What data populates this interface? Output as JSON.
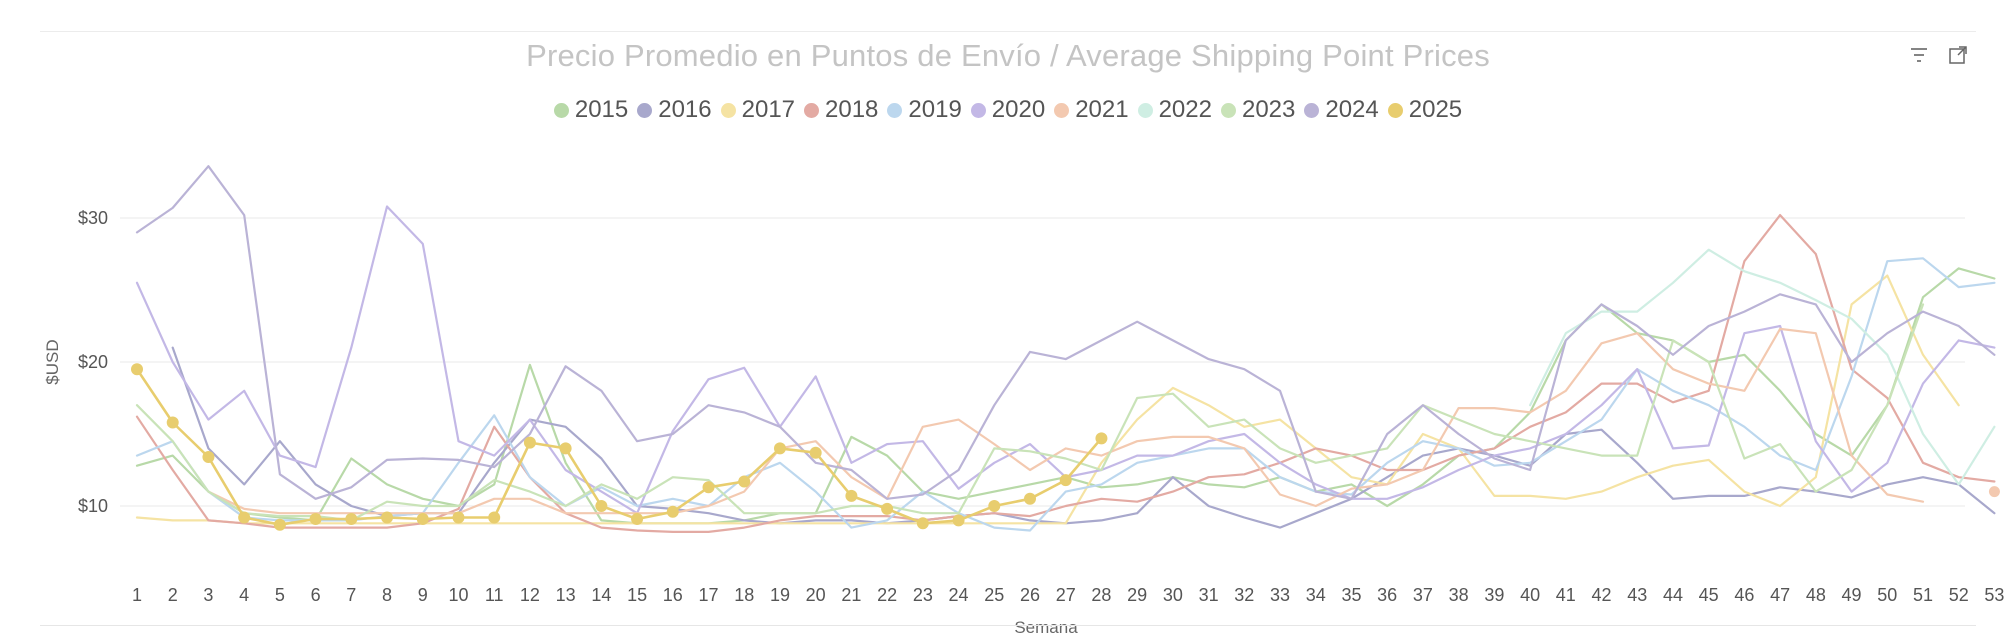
{
  "title": "Precio Promedio en Puntos de Envío / Average Shipping Point Prices",
  "toolbar": {
    "filter_icon": "filter-icon",
    "expand_icon": "expand-icon"
  },
  "chart_data": {
    "type": "line",
    "title": "Precio Promedio en Puntos de Envío / Average Shipping Point Prices",
    "xlabel": "Semana",
    "ylabel": "$USD",
    "x": [
      1,
      2,
      3,
      4,
      5,
      6,
      7,
      8,
      9,
      10,
      11,
      12,
      13,
      14,
      15,
      16,
      17,
      18,
      19,
      20,
      21,
      22,
      23,
      24,
      25,
      26,
      27,
      28,
      29,
      30,
      31,
      32,
      33,
      34,
      35,
      36,
      37,
      38,
      39,
      40,
      41,
      42,
      43,
      44,
      45,
      46,
      47,
      48,
      49,
      50,
      51,
      52,
      53
    ],
    "x_tick_labels": [
      "1",
      "2",
      "3",
      "4",
      "5",
      "6",
      "7",
      "8",
      "9",
      "10",
      "11",
      "12",
      "13",
      "14",
      "15",
      "16",
      "17",
      "18",
      "19",
      "20",
      "21",
      "22",
      "23",
      "24",
      "25",
      "26",
      "27",
      "28",
      "29",
      "30",
      "31",
      "32",
      "33",
      "34",
      "35",
      "36",
      "37",
      "38",
      "39",
      "40",
      "41",
      "42",
      "43",
      "44",
      "45",
      "46",
      "47",
      "48",
      "49",
      "50",
      "51",
      "52",
      "53"
    ],
    "y_ticks": [
      10,
      20,
      30
    ],
    "y_tick_labels": [
      "$10",
      "$20",
      "$30"
    ],
    "ylim": [
      5,
      35
    ],
    "grid": true,
    "legend_position": "top-center",
    "series": [
      {
        "name": "2015",
        "color": "#b8d9a8",
        "values": [
          12.8,
          13.5,
          11,
          9.5,
          9.2,
          9,
          13.3,
          11.5,
          10.5,
          10,
          11.5,
          19.8,
          13,
          9,
          8.8,
          8.8,
          8.8,
          9,
          9.5,
          9.5,
          14.8,
          13.5,
          11,
          10.5,
          11,
          11.5,
          12,
          11.3,
          11.5,
          12,
          11.5,
          11.3,
          12,
          11,
          11.5,
          10,
          11.5,
          13.5,
          14,
          16.5,
          21.5,
          24,
          22,
          21.5,
          20,
          20.5,
          18,
          15,
          13.5,
          17,
          24.5,
          26.5,
          25.8
        ]
      },
      {
        "name": "2016",
        "color": "#a8a8cc",
        "values": [
          null,
          21,
          14,
          11.5,
          14.5,
          11.5,
          10,
          9.3,
          9.5,
          9.5,
          13,
          16,
          15.5,
          13.3,
          10,
          9.8,
          9.5,
          9,
          8.8,
          9,
          9,
          8.8,
          9,
          9.3,
          9.5,
          9,
          8.8,
          9,
          9.5,
          12,
          10,
          9.2,
          8.5,
          9.5,
          10.5,
          12,
          13.5,
          14,
          13.5,
          12.8,
          15,
          15.3,
          13,
          10.5,
          10.7,
          10.7,
          11.3,
          11,
          10.6,
          11.5,
          12,
          11.5,
          9.5
        ]
      },
      {
        "name": "2017",
        "color": "#f5e3a3",
        "values": [
          9.2,
          9,
          9,
          8.8,
          8.8,
          8.8,
          8.8,
          8.8,
          8.8,
          8.8,
          8.8,
          8.8,
          8.8,
          8.8,
          8.8,
          8.8,
          8.8,
          8.8,
          8.8,
          8.8,
          8.8,
          8.8,
          8.8,
          8.8,
          8.8,
          8.8,
          8.8,
          13,
          16,
          18.2,
          17,
          15.5,
          16,
          14,
          12,
          11.5,
          15,
          14,
          10.7,
          10.7,
          10.5,
          11,
          12,
          12.8,
          13.2,
          11,
          10,
          12,
          24,
          26,
          20.5,
          17,
          null
        ]
      },
      {
        "name": "2018",
        "color": "#e3aaa3",
        "values": [
          16.2,
          12.5,
          9,
          8.8,
          8.5,
          8.5,
          8.5,
          8.5,
          8.8,
          9.8,
          15.5,
          12,
          9.5,
          8.5,
          8.3,
          8.2,
          8.2,
          8.5,
          9,
          9.3,
          9.3,
          9.3,
          9,
          9.3,
          9.5,
          9.3,
          10,
          10.5,
          10.3,
          11,
          12,
          12.2,
          13,
          14,
          13.5,
          12.5,
          12.5,
          13.5,
          14,
          15.5,
          16.5,
          18.5,
          18.5,
          17.2,
          18,
          27,
          30.2,
          27.5,
          19.5,
          17.5,
          13,
          12,
          11.7
        ]
      },
      {
        "name": "2019",
        "color": "#bcd7ee",
        "values": [
          13.5,
          14.5,
          11,
          9.2,
          9,
          9,
          9,
          9.3,
          9.5,
          13,
          16.3,
          12,
          10,
          11.3,
          10,
          10.5,
          10,
          12,
          13,
          11,
          8.5,
          9,
          11,
          9.5,
          8.5,
          8.3,
          11,
          11.5,
          13,
          13.5,
          14,
          14,
          12,
          11,
          10.8,
          13,
          14.5,
          14,
          12.8,
          13,
          14.5,
          16,
          19.5,
          18,
          17,
          15.5,
          13.5,
          12.5,
          19,
          27,
          27.2,
          25.2,
          25.5
        ]
      },
      {
        "name": "2020",
        "color": "#c3b8e6",
        "values": [
          25.5,
          20,
          16,
          18,
          13.5,
          12.7,
          21,
          30.8,
          28.2,
          14.5,
          13.5,
          16,
          12.5,
          11,
          9.5,
          15.2,
          18.8,
          19.6,
          15.5,
          19,
          13,
          14.3,
          14.5,
          11.2,
          13,
          14.3,
          12,
          12.5,
          13.5,
          13.5,
          14.5,
          15,
          13,
          11.5,
          10.5,
          10.5,
          11.3,
          12.5,
          13.5,
          14,
          15,
          17,
          19.5,
          14,
          14.2,
          22,
          22.5,
          14.5,
          11,
          13,
          18.5,
          21.5,
          21
        ]
      },
      {
        "name": "2021",
        "color": "#f3c9b0",
        "values": [
          null,
          null,
          11,
          9.8,
          9.5,
          9.5,
          9.5,
          9.5,
          9.5,
          9.5,
          10.5,
          10.5,
          9.5,
          9.5,
          9.5,
          9.5,
          10,
          11,
          14,
          14.5,
          12,
          10.5,
          15.5,
          16,
          14.3,
          12.5,
          14,
          13.5,
          14.5,
          14.8,
          14.8,
          14,
          10.8,
          10,
          11.2,
          11.5,
          12.5,
          16.8,
          16.8,
          16.5,
          18,
          21.3,
          22,
          19.5,
          18.5,
          18,
          22.3,
          22,
          13.5,
          10.8,
          10.3,
          null,
          null
        ]
      },
      {
        "name": "2022",
        "color": "#cfeee3",
        "values": [
          null,
          null,
          null,
          null,
          null,
          null,
          null,
          null,
          null,
          null,
          null,
          null,
          null,
          null,
          null,
          null,
          null,
          null,
          null,
          null,
          null,
          null,
          null,
          null,
          null,
          null,
          null,
          null,
          null,
          null,
          null,
          null,
          null,
          null,
          null,
          null,
          null,
          null,
          null,
          17,
          22,
          23.5,
          23.5,
          25.5,
          27.8,
          26.3,
          25.5,
          24.3,
          23,
          20.5,
          15,
          11.5,
          15.5
        ]
      },
      {
        "name": "2023",
        "color": "#c9e3b8",
        "values": [
          17,
          14.5,
          11,
          9.5,
          9.3,
          9.3,
          9,
          10.3,
          10,
          10,
          11.8,
          11,
          10,
          11.5,
          10.5,
          12,
          11.8,
          9.5,
          9.5,
          9.5,
          10,
          10,
          9.5,
          9.5,
          14,
          13.8,
          13.3,
          12.5,
          17.5,
          17.8,
          15.5,
          16,
          14,
          13,
          13.5,
          14,
          17,
          16,
          15,
          14.5,
          14,
          13.5,
          13.5,
          21.5,
          20,
          13.3,
          14.3,
          11,
          12.5,
          17,
          24,
          null,
          null
        ]
      },
      {
        "name": "2024",
        "color": "#bab3d6",
        "values": [
          29,
          30.7,
          33.6,
          30.2,
          12.2,
          10.5,
          11.3,
          13.2,
          13.3,
          13.2,
          12.7,
          15,
          19.7,
          18,
          14.5,
          15,
          17,
          16.5,
          15.5,
          13,
          12.5,
          10.5,
          10.8,
          12.5,
          17,
          20.7,
          20.2,
          21.5,
          22.8,
          21.5,
          20.2,
          19.5,
          18,
          11,
          10.5,
          15,
          17,
          15,
          13.3,
          12.5,
          21.5,
          24,
          22.5,
          20.5,
          22.5,
          23.5,
          24.7,
          24,
          20,
          22,
          23.5,
          22.5,
          20.5
        ]
      },
      {
        "name": "2025",
        "color": "#e8cd6e",
        "values": [
          19.5,
          15.8,
          13.4,
          9.2,
          8.7,
          9.1,
          9.1,
          9.2,
          9.1,
          9.2,
          9.2,
          14.4,
          14,
          10,
          9.1,
          9.6,
          11.3,
          11.7,
          14,
          13.7,
          10.7,
          9.8,
          8.8,
          9,
          10,
          10.5,
          11.8,
          14.7,
          null,
          null,
          null,
          null,
          null,
          null,
          null,
          null,
          null,
          null,
          null,
          null,
          null,
          null,
          null,
          null,
          null,
          null,
          null,
          null,
          null,
          null,
          null,
          null,
          null
        ]
      }
    ],
    "extra_points": [
      {
        "series": "2021",
        "x": 53,
        "y": 11
      }
    ]
  }
}
